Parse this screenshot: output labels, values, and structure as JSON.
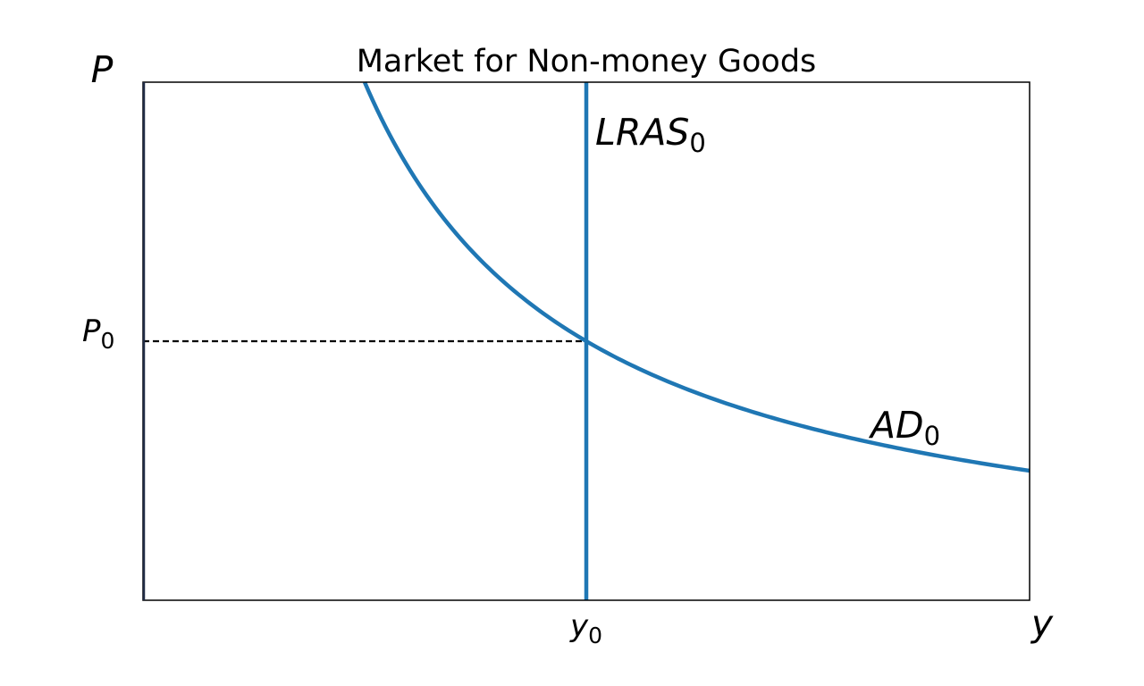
{
  "chart_data": {
    "type": "line",
    "title": "Market for Non-money Goods",
    "xlabel": "y",
    "ylabel": "P",
    "xlim": [
      0,
      2
    ],
    "ylim": [
      0,
      2
    ],
    "grid": false,
    "xticks": [
      {
        "value": 1,
        "base": "y",
        "sub": "0"
      }
    ],
    "yticks": [
      {
        "value": 1,
        "base": "P",
        "sub": "0"
      }
    ],
    "series": [
      {
        "name": "AD",
        "label_base": "AD",
        "label_sub": "0",
        "kind": "hyperbola",
        "equation": "P = 1 / y",
        "x_range": [
          0.5,
          2
        ],
        "color": "#1f77b4"
      },
      {
        "name": "LRAS",
        "label_base": "LRAS",
        "label_sub": "0",
        "kind": "vertical",
        "x": 1,
        "color": "#1f77b4"
      }
    ],
    "reference_lines": [
      {
        "kind": "horizontal-dashed",
        "y": 1,
        "x_range": [
          0,
          1
        ],
        "color": "#000000"
      }
    ],
    "equilibrium": {
      "x": 1,
      "y": 1
    }
  }
}
